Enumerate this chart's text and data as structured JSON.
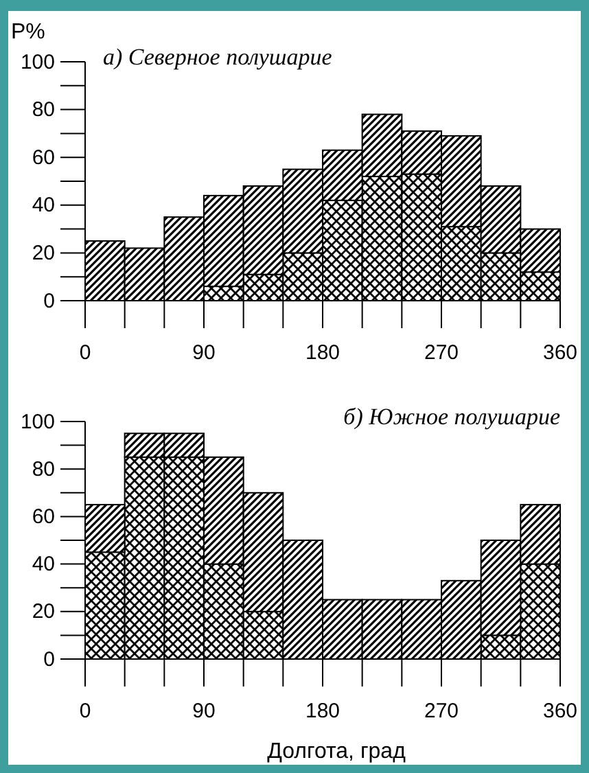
{
  "chart_data": [
    {
      "type": "bar",
      "title": "а) Северное полушарие",
      "ylabel": "P%",
      "x": [
        15,
        45,
        75,
        105,
        135,
        165,
        195,
        225,
        255,
        285,
        315,
        345
      ],
      "stacked": true,
      "legend": false,
      "grid": false,
      "series": [
        {
          "color": "#000000",
          "values": [
            0,
            0,
            0,
            6,
            11,
            20,
            42,
            52,
            53,
            31,
            20,
            12
          ]
        },
        {
          "color": "#000000",
          "values": [
            25,
            22,
            35,
            38,
            37,
            35,
            21,
            26,
            18,
            38,
            28,
            18
          ]
        }
      ],
      "xlim": [
        0,
        360
      ],
      "xticks": [
        0,
        90,
        180,
        270,
        360
      ],
      "ylim": [
        0,
        100
      ],
      "yticks": [
        0,
        20,
        40,
        60,
        80,
        100
      ]
    },
    {
      "type": "bar",
      "title": "б) Южное полушарие",
      "xlabel": "Долгота, град",
      "x": [
        15,
        45,
        75,
        105,
        135,
        165,
        195,
        225,
        255,
        285,
        315,
        345
      ],
      "stacked": true,
      "legend": false,
      "grid": false,
      "series": [
        {
          "color": "#000000",
          "values": [
            45,
            85,
            85,
            40,
            20,
            0,
            0,
            0,
            0,
            0,
            10,
            40
          ]
        },
        {
          "color": "#000000",
          "values": [
            20,
            10,
            10,
            45,
            50,
            50,
            25,
            25,
            25,
            33,
            40,
            25
          ]
        }
      ],
      "xlim": [
        0,
        360
      ],
      "xticks": [
        0,
        90,
        180,
        270,
        360
      ],
      "ylim": [
        0,
        100
      ],
      "yticks": [
        0,
        20,
        40,
        60,
        80,
        100
      ]
    }
  ]
}
